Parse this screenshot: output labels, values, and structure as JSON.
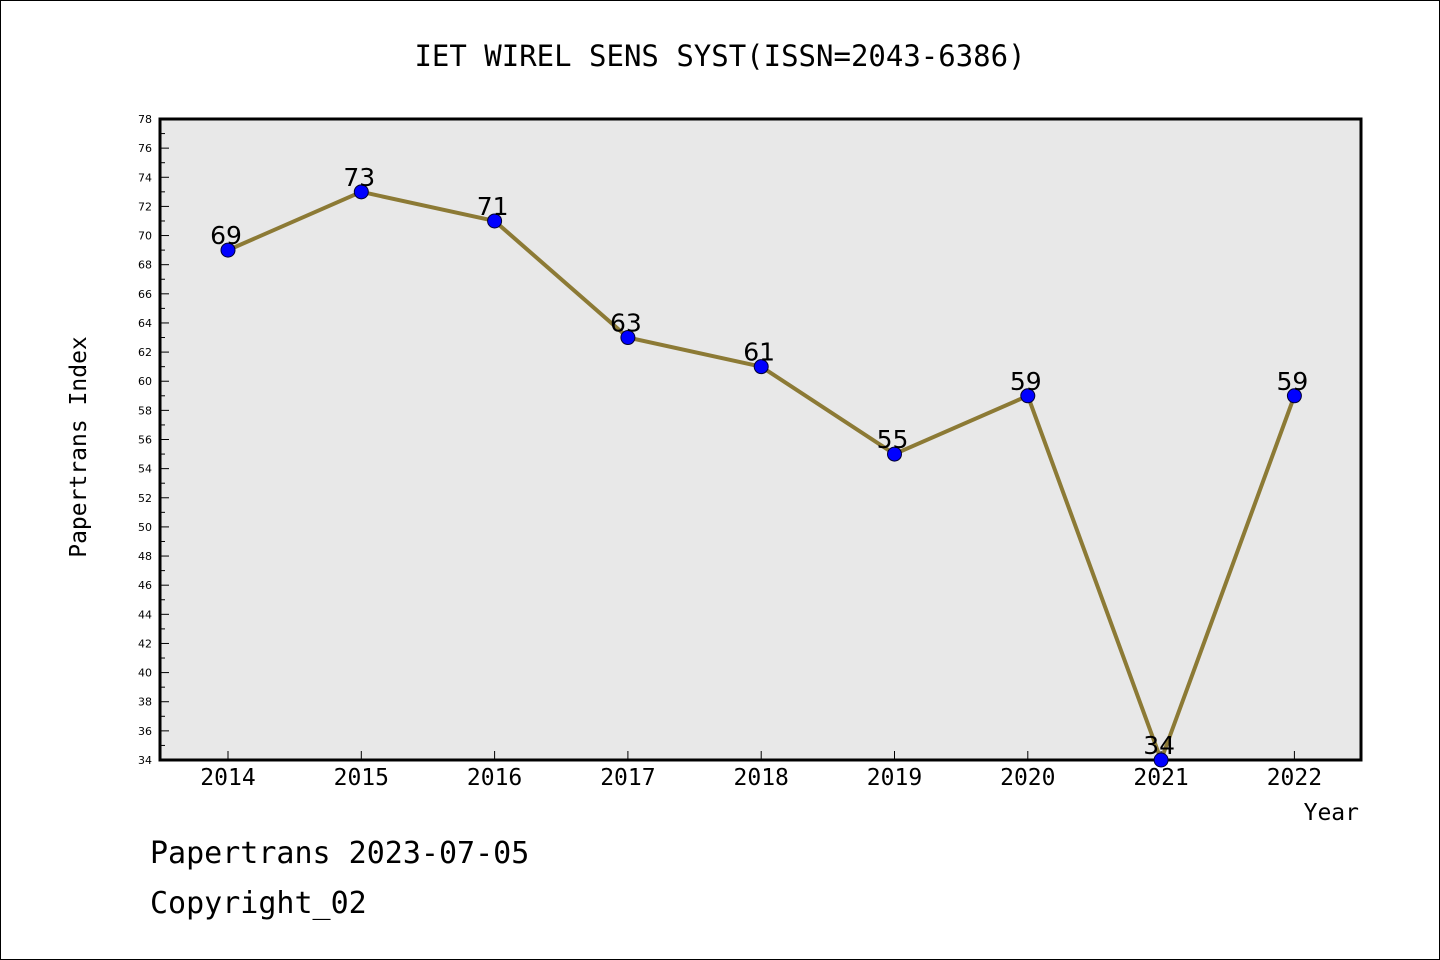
{
  "chart_data": {
    "type": "line",
    "title": "IET WIREL SENS SYST(ISSN=2043-6386)",
    "xlabel": "Year",
    "ylabel": "Papertrans Index",
    "categories": [
      "2014",
      "2015",
      "2016",
      "2017",
      "2018",
      "2019",
      "2020",
      "2021",
      "2022"
    ],
    "values": [
      69,
      73,
      71,
      63,
      61,
      55,
      59,
      34,
      59
    ],
    "ylim": [
      34,
      78
    ],
    "y_major_step": 2,
    "grid": false,
    "line_color": "#8c7a35",
    "marker_color": "#0000ff",
    "plot_background": "#e8e8e8"
  },
  "footer": {
    "line1": "Papertrans 2023-07-05",
    "line2": "Copyright_02"
  }
}
